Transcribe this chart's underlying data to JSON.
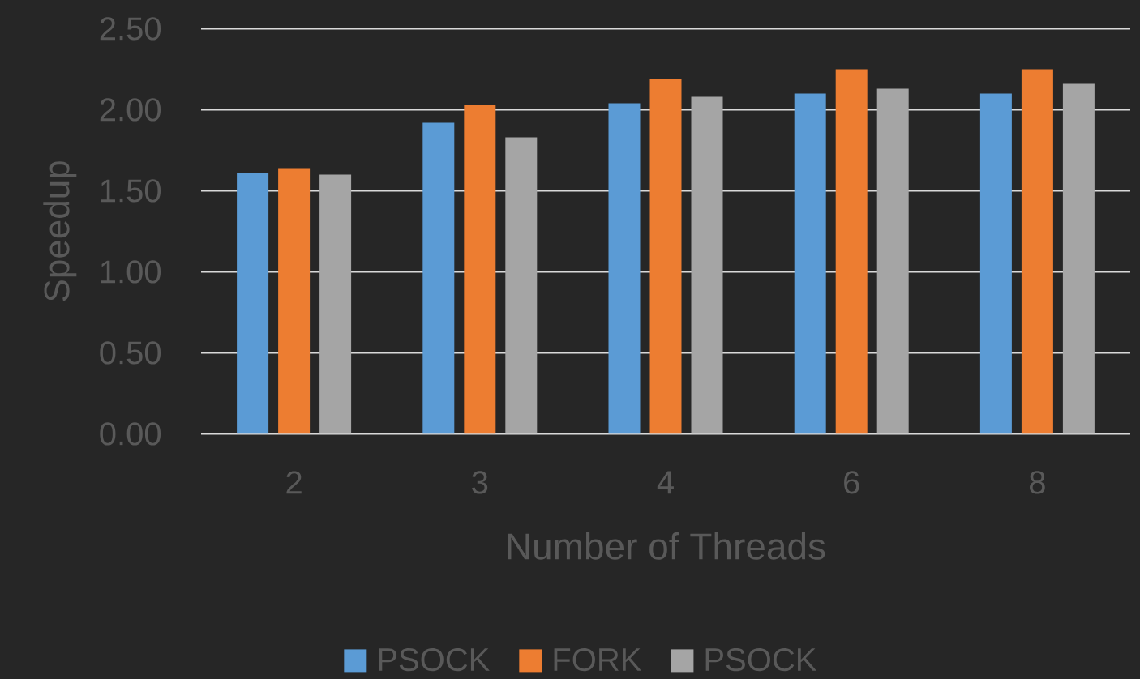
{
  "chart_data": {
    "type": "bar",
    "xlabel": "Number of Threads",
    "ylabel": "Speedup",
    "categories": [
      "2",
      "3",
      "4",
      "6",
      "8"
    ],
    "series": [
      {
        "name": "PSOCK",
        "color": "#5b9bd5",
        "values": [
          1.61,
          1.92,
          2.04,
          2.1,
          2.1
        ]
      },
      {
        "name": "FORK",
        "color": "#ed7d31",
        "values": [
          1.64,
          2.03,
          2.19,
          2.25,
          2.25
        ]
      },
      {
        "name": "PSOCK",
        "color": "#a5a5a5",
        "values": [
          1.6,
          1.83,
          2.08,
          2.13,
          2.16
        ]
      }
    ],
    "ylim": [
      0,
      2.5
    ],
    "yticks": [
      {
        "value": 0,
        "label": "0.00"
      },
      {
        "value": 0.5,
        "label": "0.50"
      },
      {
        "value": 1,
        "label": "1.00"
      },
      {
        "value": 1.5,
        "label": "1.50"
      },
      {
        "value": 2,
        "label": "2.00"
      },
      {
        "value": 2.5,
        "label": "2.50"
      }
    ],
    "grid": "y",
    "legend": "bottom"
  }
}
